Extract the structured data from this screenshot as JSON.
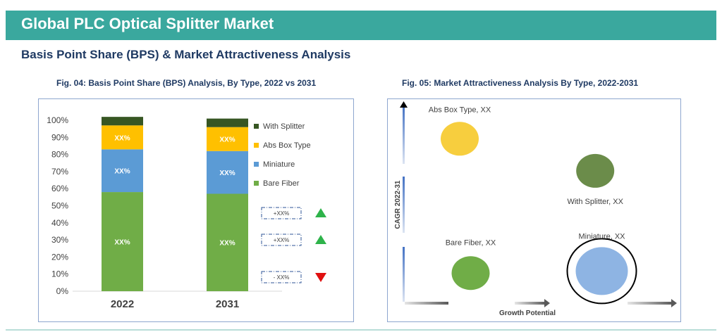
{
  "header": {
    "title": "Global PLC Optical Splitter Market"
  },
  "section": {
    "title": "Basis Point Share (BPS) & Market Attractiveness Analysis"
  },
  "colors": {
    "header_bg": "#3aa89e",
    "title_color": "#1f3a63",
    "panel_border": "#8ea6cf"
  },
  "chart_data": [
    {
      "type": "bar",
      "stacked": true,
      "title": "Fig. 04: Basis Point Share (BPS) Analysis, By Type, 2022 vs 2031",
      "categories": [
        "2022",
        "2031"
      ],
      "ylim": [
        0,
        100
      ],
      "yticks": [
        "0%",
        "10%",
        "20%",
        "30%",
        "40%",
        "50%",
        "60%",
        "70%",
        "80%",
        "90%",
        "100%"
      ],
      "series": [
        {
          "name": "Bare Fiber",
          "color": "#70ad47",
          "values": [
            58,
            57
          ],
          "labels": [
            "XX%",
            "XX%"
          ]
        },
        {
          "name": "Miniature",
          "color": "#5b9bd5",
          "values": [
            25,
            25
          ],
          "labels": [
            "XX%",
            "XX%"
          ]
        },
        {
          "name": "Abs Box Type",
          "color": "#ffc000",
          "values": [
            14,
            14
          ],
          "labels": [
            "XX%",
            "XX%"
          ]
        },
        {
          "name": "With Splitter",
          "color": "#375623",
          "values": [
            5,
            5
          ],
          "labels": [
            "",
            ""
          ]
        }
      ],
      "legend_position": "right",
      "changes": [
        {
          "label": "+XX%",
          "direction": "up",
          "color": "#2eb34a"
        },
        {
          "label": "+XX%",
          "direction": "up",
          "color": "#2eb34a"
        },
        {
          "label": "- XX%",
          "direction": "down",
          "color": "#e01010"
        }
      ]
    },
    {
      "type": "scatter",
      "title": "Fig. 05: Market Attractiveness Analysis By Type, 2022-2031",
      "xlabel": "Growth Potential",
      "ylabel": "CAGR 2022-31",
      "points": [
        {
          "label": "Abs Box Type, XX",
          "x": 2,
          "y": 8.2,
          "color": "#f7ce3e",
          "highlight": false
        },
        {
          "label": "With Splitter, XX",
          "x": 8.2,
          "y": 6.6,
          "color": "#6b8c4a",
          "highlight": false
        },
        {
          "label": "Bare Fiber, XX",
          "x": 2.5,
          "y": 1.5,
          "color": "#70ad47",
          "highlight": false
        },
        {
          "label": "Miniature, XX",
          "x": 8.5,
          "y": 1.6,
          "color": "#8eb4e3",
          "highlight": true
        }
      ]
    }
  ]
}
